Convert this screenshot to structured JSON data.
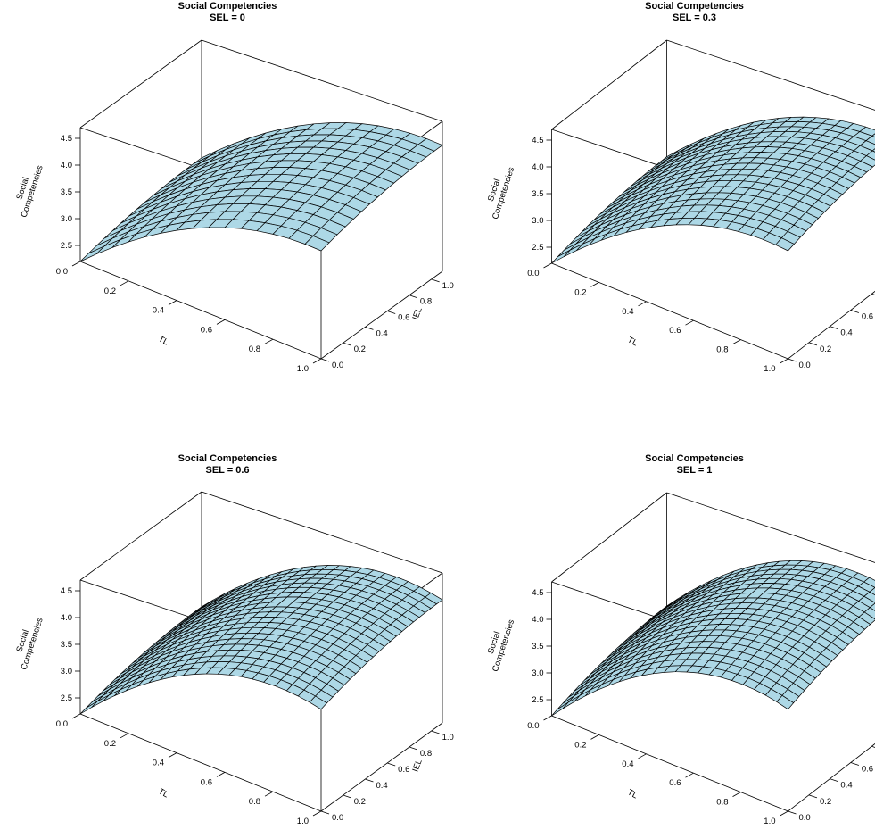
{
  "chart_data": [
    {
      "type": "surface3d",
      "title": "Social Competencies",
      "subtitle": "SEL = 0",
      "xlabel": "TL",
      "ylabel": "IEL",
      "zlabel": "Social\nCompetencies",
      "xlim": [
        0,
        1
      ],
      "ylim": [
        0,
        1.1
      ],
      "zlim": [
        2.2,
        4.7
      ],
      "x_ticks": [
        "0.0",
        "0.2",
        "0.4",
        "0.6",
        "0.8",
        "1.0"
      ],
      "y_ticks": [
        "0.0",
        "0.2",
        "0.4",
        "0.6",
        "0.8",
        "1.0"
      ],
      "z_ticks": [
        "2.5",
        "3.0",
        "3.5",
        "4.0",
        "4.5"
      ],
      "grid_size": [
        15,
        15
      ],
      "surface_color": "#add8e6",
      "model": {
        "z_at_origin": 2.2,
        "tl_linear": 4.0,
        "tl_quadratic": -2.2,
        "iel_linear": 0.55,
        "iel_quadratic": -0.25
      }
    },
    {
      "type": "surface3d",
      "title": "Social Competencies",
      "subtitle": "SEL = 0.3",
      "xlabel": "TL",
      "ylabel": "IEL",
      "zlabel": "Social\nCompetencies",
      "xlim": [
        0,
        1
      ],
      "ylim": [
        0,
        1.1
      ],
      "zlim": [
        2.2,
        4.7
      ],
      "x_ticks": [
        "0.0",
        "0.2",
        "0.4",
        "0.6",
        "0.8",
        "1.0"
      ],
      "y_ticks": [
        "0.0",
        "0.2",
        "0.4",
        "0.6",
        "0.8",
        "1.0"
      ],
      "z_ticks": [
        "2.5",
        "3.0",
        "3.5",
        "4.0",
        "4.5"
      ],
      "grid_size": [
        19,
        19
      ],
      "surface_color": "#add8e6",
      "model": {
        "z_at_origin": 2.2,
        "tl_linear": 4.25,
        "tl_quadratic": -2.45,
        "iel_linear": 0.6,
        "iel_quadratic": -0.28
      }
    },
    {
      "type": "surface3d",
      "title": "Social Competencies",
      "subtitle": "SEL = 0.6",
      "xlabel": "TL",
      "ylabel": "IEL",
      "zlabel": "Social\nCompetencies",
      "xlim": [
        0,
        1
      ],
      "ylim": [
        0,
        1.1
      ],
      "zlim": [
        2.2,
        4.7
      ],
      "x_ticks": [
        "0.0",
        "0.2",
        "0.4",
        "0.6",
        "0.8",
        "1.0"
      ],
      "y_ticks": [
        "0.0",
        "0.2",
        "0.4",
        "0.6",
        "0.8",
        "1.0"
      ],
      "z_ticks": [
        "2.5",
        "3.0",
        "3.5",
        "4.0",
        "4.5"
      ],
      "grid_size": [
        21,
        21
      ],
      "surface_color": "#add8e6",
      "model": {
        "z_at_origin": 2.2,
        "tl_linear": 4.55,
        "tl_quadratic": -2.85,
        "iel_linear": 0.65,
        "iel_quadratic": -0.3
      }
    },
    {
      "type": "surface3d",
      "title": "Social Competencies",
      "subtitle": "SEL = 1",
      "xlabel": "TL",
      "ylabel": "IEL",
      "zlabel": "Social\nCompetencies",
      "xlim": [
        0,
        1
      ],
      "ylim": [
        0,
        1.1
      ],
      "zlim": [
        2.2,
        4.7
      ],
      "x_ticks": [
        "0.0",
        "0.2",
        "0.4",
        "0.6",
        "0.8",
        "1.0"
      ],
      "y_ticks": [
        "0.0",
        "0.2",
        "0.4",
        "0.6",
        "0.8",
        "1.0"
      ],
      "z_ticks": [
        "2.5",
        "3.0",
        "3.5",
        "4.0",
        "4.5"
      ],
      "grid_size": [
        21,
        21
      ],
      "surface_color": "#add8e6",
      "model": {
        "z_at_origin": 2.2,
        "tl_linear": 4.75,
        "tl_quadratic": -3.05,
        "iel_linear": 0.7,
        "iel_quadratic": -0.32
      }
    }
  ]
}
